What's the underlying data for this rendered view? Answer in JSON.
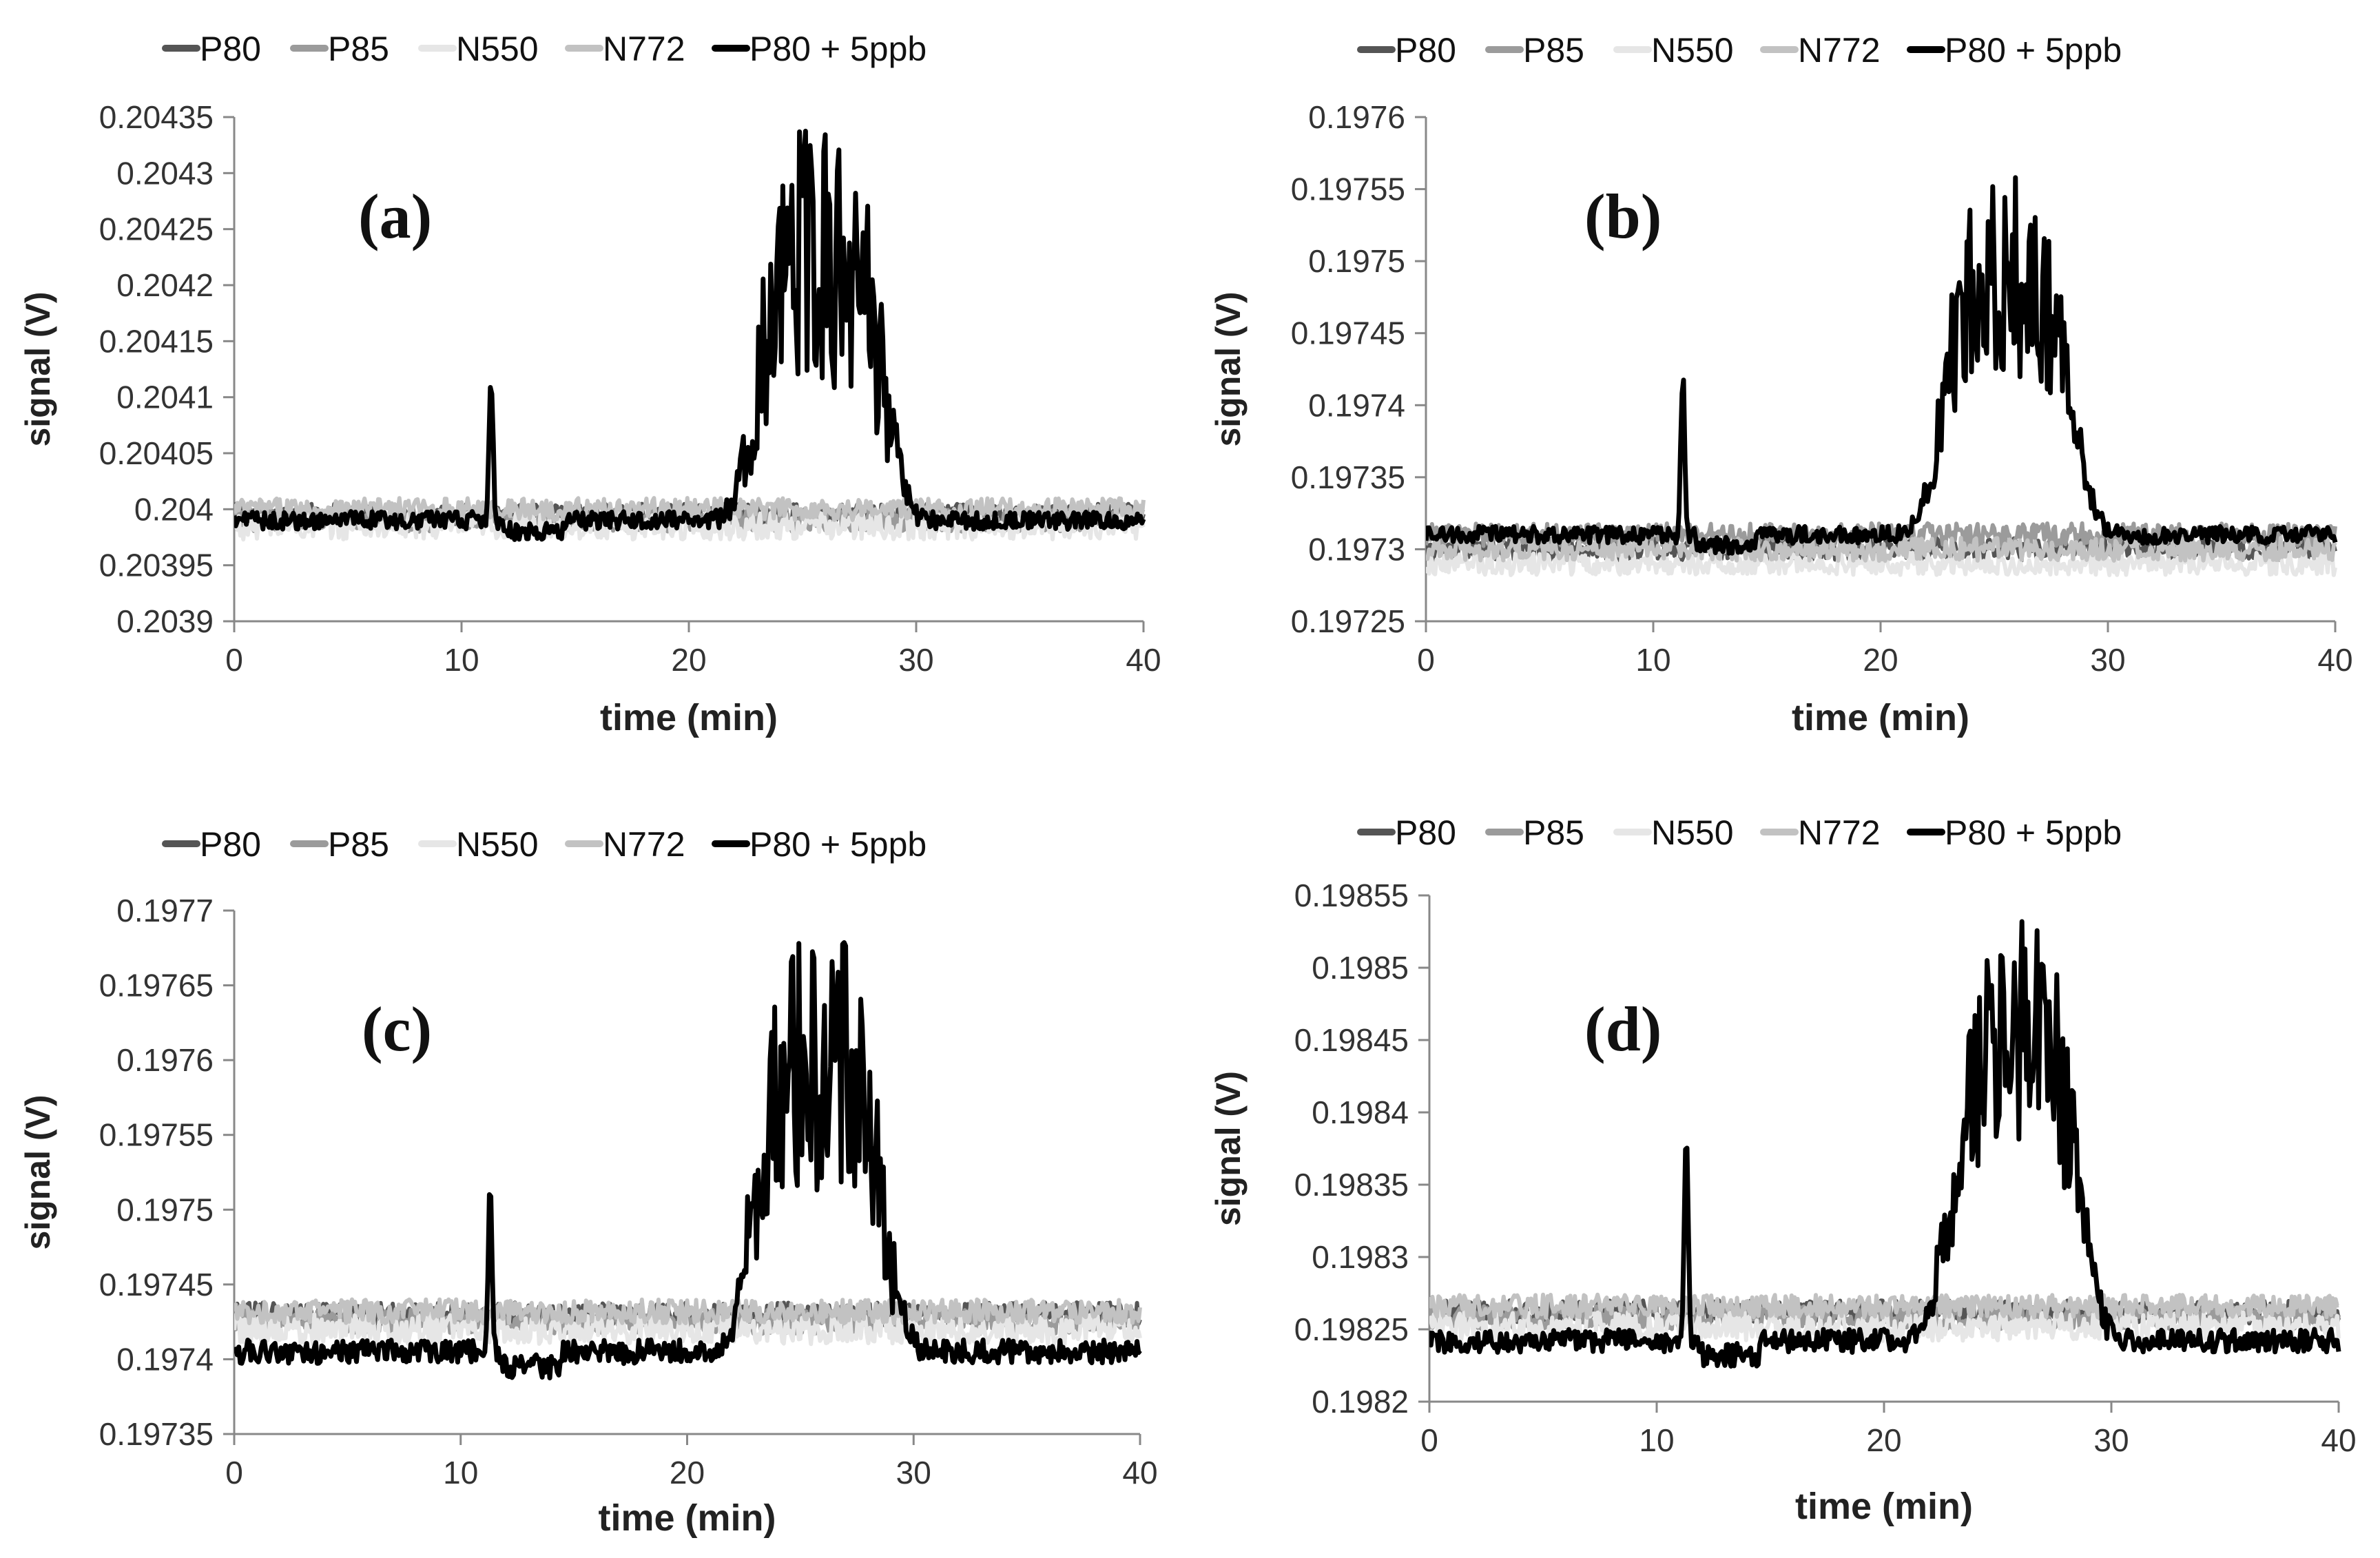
{
  "figure": {
    "legend_names": [
      "P80",
      "P85",
      "N550",
      "N772",
      "P80 + 5ppb"
    ],
    "series_colors": [
      "#555555",
      "#9b9b9b",
      "#e6e6e6",
      "#c2c2c2",
      "#000000"
    ]
  },
  "chart_data": [
    {
      "type": "line",
      "panel_label": "(a)",
      "title": "",
      "xlabel": "time (min)",
      "ylabel": "signal (V)",
      "xlim": [
        0,
        40
      ],
      "ylim": [
        0.2039,
        0.20435
      ],
      "xticks": [
        0,
        10,
        20,
        30,
        40
      ],
      "xtick_labels": [
        "0",
        "10",
        "20",
        "30",
        "40"
      ],
      "yticks": [
        0.2039,
        0.20395,
        0.204,
        0.20405,
        0.2041,
        0.20415,
        0.2042,
        0.20425,
        0.2043,
        0.20435
      ],
      "ytick_labels": [
        "0.2039",
        "0.20395",
        "0.204",
        "0.20405",
        "0.2041",
        "0.20415",
        "0.2042",
        "0.20425",
        "0.2043",
        "0.20435"
      ],
      "legend": [
        "P80",
        "P85",
        "N550",
        "N772",
        "P80 + 5ppb"
      ],
      "legend_position": "top",
      "series": [
        {
          "name": "P80",
          "baseline": 0.203995,
          "noise": 1e-05
        },
        {
          "name": "P85",
          "baseline": 0.20399,
          "noise": 1e-05
        },
        {
          "name": "N550",
          "baseline": 0.203985,
          "noise": 1.2e-05
        },
        {
          "name": "N772",
          "baseline": 0.204,
          "noise": 1e-05
        },
        {
          "name": "P80 + 5ppb",
          "baseline": 0.20399,
          "noise": 8e-06,
          "spike": {
            "x": 11.3,
            "peak": 0.20412
          },
          "peak": {
            "center": 25.8,
            "top": 0.20422,
            "max": 0.20432
          },
          "end_value": 0.20398
        }
      ]
    },
    {
      "type": "line",
      "panel_label": "(b)",
      "title": "",
      "xlabel": "time (min)",
      "ylabel": "signal (V)",
      "xlim": [
        0,
        40
      ],
      "ylim": [
        0.19725,
        0.1976
      ],
      "xticks": [
        0,
        10,
        20,
        30,
        40
      ],
      "xtick_labels": [
        "0",
        "10",
        "20",
        "30",
        "40"
      ],
      "yticks": [
        0.19725,
        0.1973,
        0.19735,
        0.1974,
        0.19745,
        0.1975,
        0.19755,
        0.1976
      ],
      "ytick_labels": [
        "0.19725",
        "0.1973",
        "0.19735",
        "0.1974",
        "0.19745",
        "0.1975",
        "0.19755",
        "0.1976"
      ],
      "legend": [
        "P80",
        "P85",
        "N550",
        "N772",
        "P80 + 5ppb"
      ],
      "legend_position": "top",
      "series": [
        {
          "name": "P80",
          "baseline": 0.1973,
          "noise": 8e-06
        },
        {
          "name": "P85",
          "baseline": 0.19731,
          "noise": 8e-06
        },
        {
          "name": "N550",
          "baseline": 0.19729,
          "noise": 8e-06
        },
        {
          "name": "N772",
          "baseline": 0.1973,
          "noise": 8e-06
        },
        {
          "name": "P80 + 5ppb",
          "baseline": 0.19731,
          "noise": 6e-06,
          "spike": {
            "x": 11.3,
            "peak": 0.19742
          },
          "peak": {
            "center": 25.6,
            "top": 0.19749,
            "max": 0.19755
          },
          "end_value": 0.19732
        }
      ]
    },
    {
      "type": "line",
      "panel_label": "(c)",
      "title": "",
      "xlabel": "time (min)",
      "ylabel": "signal (V)",
      "xlim": [
        0,
        40
      ],
      "ylim": [
        0.19735,
        0.1977
      ],
      "xticks": [
        0,
        10,
        20,
        30,
        40
      ],
      "xtick_labels": [
        "0",
        "10",
        "20",
        "30",
        "40"
      ],
      "yticks": [
        0.19735,
        0.1974,
        0.19745,
        0.1975,
        0.19755,
        0.1976,
        0.19765,
        0.1977
      ],
      "ytick_labels": [
        "0.19735",
        "0.1974",
        "0.19745",
        "0.1975",
        "0.19755",
        "0.1976",
        "0.19765",
        "0.1977"
      ],
      "legend": [
        "P80",
        "P85",
        "N550",
        "N772",
        "P80 + 5ppb"
      ],
      "legend_position": "top",
      "series": [
        {
          "name": "P80",
          "baseline": 0.19743,
          "noise": 8e-06
        },
        {
          "name": "P85",
          "baseline": 0.197425,
          "noise": 8e-06
        },
        {
          "name": "N550",
          "baseline": 0.19742,
          "noise": 1e-05
        },
        {
          "name": "N772",
          "baseline": 0.197432,
          "noise": 8e-06
        },
        {
          "name": "P80 + 5ppb",
          "baseline": 0.197405,
          "noise": 8e-06,
          "spike": {
            "x": 11.3,
            "peak": 0.19751
          },
          "peak": {
            "center": 25.8,
            "top": 0.1976,
            "max": 0.19767
          },
          "end_value": 0.19741
        }
      ]
    },
    {
      "type": "line",
      "panel_label": "(d)",
      "title": "",
      "xlabel": "time (min)",
      "ylabel": "signal (V)",
      "xlim": [
        0,
        40
      ],
      "ylim": [
        0.1982,
        0.19855
      ],
      "xticks": [
        0,
        10,
        20,
        30,
        40
      ],
      "xtick_labels": [
        "0",
        "10",
        "20",
        "30",
        "40"
      ],
      "yticks": [
        0.1982,
        0.19825,
        0.1983,
        0.19835,
        0.1984,
        0.19845,
        0.1985,
        0.19855
      ],
      "ytick_labels": [
        "0.1982",
        "0.19825",
        "0.1983",
        "0.19835",
        "0.1984",
        "0.19845",
        "0.1985",
        "0.19855"
      ],
      "legend": [
        "P80",
        "P85",
        "N550",
        "N772",
        "P80 + 5ppb"
      ],
      "legend_position": "top",
      "series": [
        {
          "name": "P80",
          "baseline": 0.198262,
          "noise": 8e-06
        },
        {
          "name": "P85",
          "baseline": 0.198258,
          "noise": 8e-06
        },
        {
          "name": "N550",
          "baseline": 0.198252,
          "noise": 1e-05
        },
        {
          "name": "N772",
          "baseline": 0.198266,
          "noise": 8e-06
        },
        {
          "name": "P80 + 5ppb",
          "baseline": 0.198242,
          "noise": 8e-06,
          "spike": {
            "x": 11.3,
            "peak": 0.19838
          },
          "peak": {
            "center": 25.8,
            "top": 0.19845,
            "max": 0.19852
          },
          "end_value": 0.198242
        }
      ]
    }
  ]
}
